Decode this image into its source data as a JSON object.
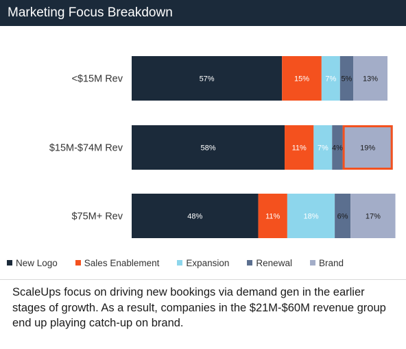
{
  "header": {
    "title": "Marketing Focus Breakdown"
  },
  "chart_data": {
    "type": "bar",
    "orientation": "horizontal",
    "stacked": true,
    "title": "Marketing Focus Breakdown",
    "categories": [
      "<$15M Rev",
      "$15M-$74M Rev",
      "$75M+ Rev"
    ],
    "series": [
      {
        "name": "New Logo",
        "color": "#1b2a3a",
        "label_color": "#ffffff",
        "values": [
          57,
          58,
          48
        ],
        "labels": [
          "57%",
          "58%",
          "48%"
        ]
      },
      {
        "name": "Sales Enablement",
        "color": "#f4511e",
        "label_color": "#ffffff",
        "values": [
          15,
          11,
          11
        ],
        "labels": [
          "15%",
          "11%",
          "11%"
        ]
      },
      {
        "name": "Expansion",
        "color": "#8dd6ec",
        "label_color": "#ffffff",
        "values": [
          7,
          7,
          18
        ],
        "labels": [
          "7%",
          "7%",
          "18%"
        ]
      },
      {
        "name": "Renewal",
        "color": "#5b6f8f",
        "label_color": "#1a1a1a",
        "values": [
          5,
          4,
          6
        ],
        "labels": [
          "5%",
          "4%",
          "6%"
        ]
      },
      {
        "name": "Brand",
        "color": "#a3adc8",
        "label_color": "#1a1a1a",
        "values": [
          13,
          19,
          17
        ],
        "labels": [
          "13%",
          "19%",
          "17%"
        ]
      }
    ],
    "xlim": [
      0,
      97
    ],
    "grid": false,
    "legend_position": "bottom",
    "highlight": {
      "category_index": 1,
      "series_index": 4,
      "color": "#f4511e"
    }
  },
  "caption": "ScaleUps focus on driving new bookings via demand gen in the earlier stages of growth. As a result, companies in the $21M-$60M revenue group end up playing catch-up on brand."
}
